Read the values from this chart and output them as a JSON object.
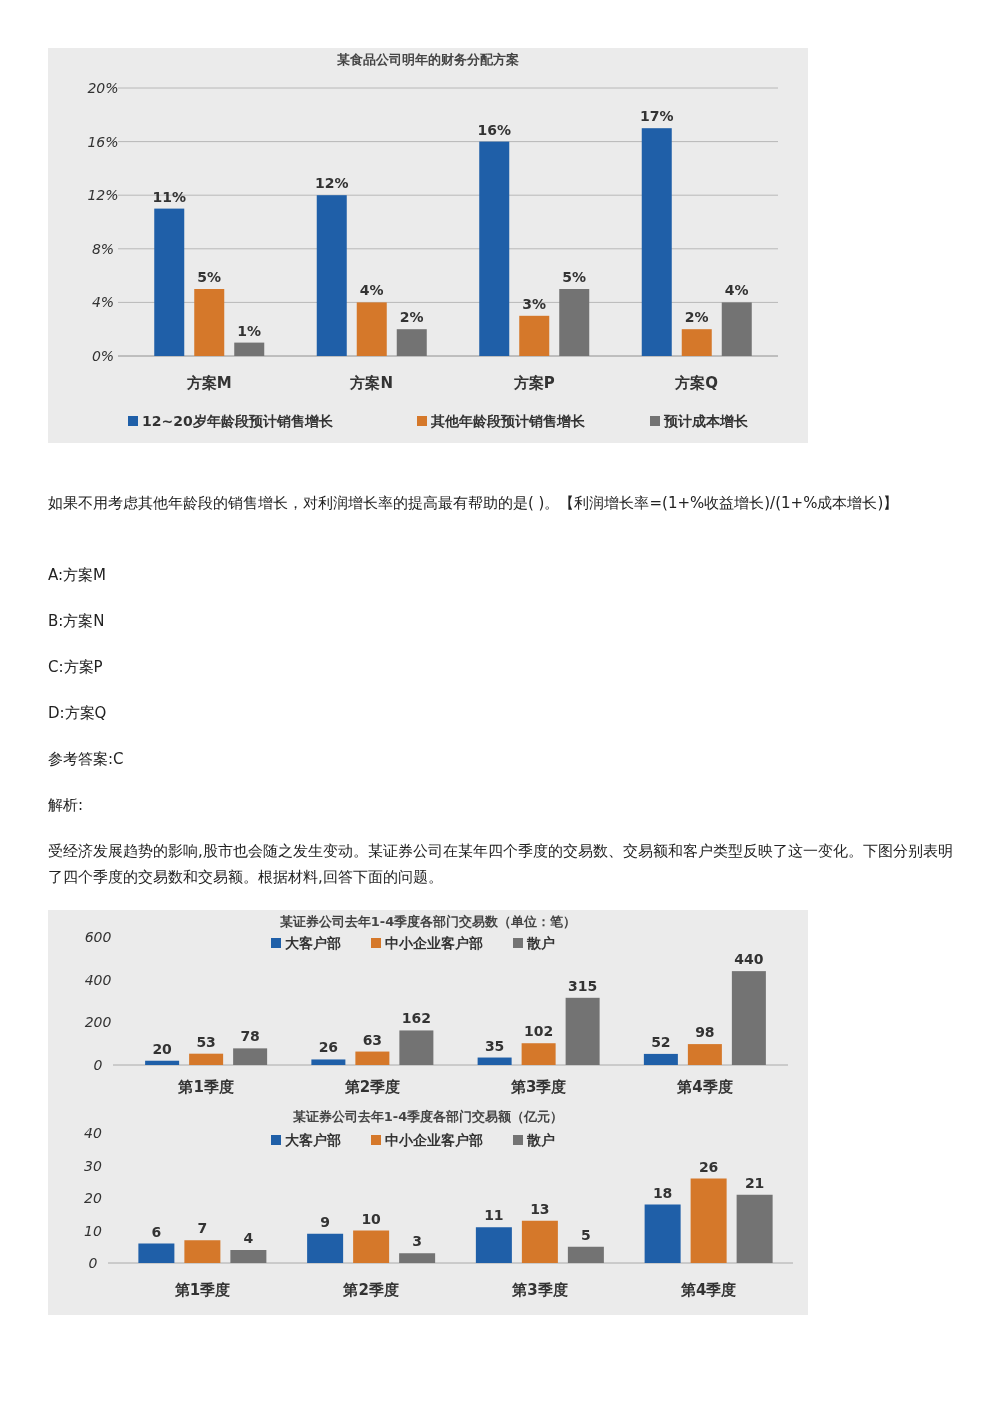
{
  "chart_data": [
    {
      "type": "bar",
      "title": "某食品公司明年的财务分配方案",
      "categories": [
        "方案M",
        "方案N",
        "方案P",
        "方案Q"
      ],
      "series": [
        {
          "name": "12~20岁年龄段预计销售增长",
          "color": "#1f5fa8",
          "values": [
            11,
            12,
            16,
            17
          ],
          "value_labels": [
            "11%",
            "12%",
            "16%",
            "17%"
          ]
        },
        {
          "name": "其他年龄段预计销售增长",
          "color": "#d5782a",
          "values": [
            5,
            4,
            3,
            2
          ],
          "value_labels": [
            "5%",
            "4%",
            "3%",
            "2%"
          ]
        },
        {
          "name": "预计成本增长",
          "color": "#737373",
          "values": [
            1,
            2,
            5,
            4
          ],
          "value_labels": [
            "1%",
            "2%",
            "5%",
            "4%"
          ]
        }
      ],
      "ylim": [
        0,
        20
      ],
      "yticks": [
        {
          "value": 0,
          "label": "0%"
        },
        {
          "value": 4,
          "label": "4%"
        },
        {
          "value": 8,
          "label": "8%"
        },
        {
          "value": 12,
          "label": "12%"
        },
        {
          "value": 16,
          "label": "16%"
        },
        {
          "value": 20,
          "label": "20%"
        }
      ],
      "grid": "y",
      "legend": "bottom",
      "annotations": [
        "如果不用考虑其他年龄段的销售增长，对利润增长率的提高最有帮助的是( )。【利润增长率=(1+%收益增长)/(1+%成本增长)】",
        "A:方案M",
        "B:方案N",
        "C:方案P",
        "D:方案Q",
        "参考答案:C",
        "解析:",
        "受经济发展趋势的影响,股市也会随之发生变动。某证券公司在某年四个季度的交易数、交易额和客户类型反映了这一变化。下图分别表明了四个季度的交易数和交易额。根据材料,回答下面的问题。"
      ]
    },
    {
      "type": "bar",
      "title": "某证券公司去年1-4季度各部门交易数（单位：笔）",
      "categories": [
        "第1季度",
        "第2季度",
        "第3季度",
        "第4季度"
      ],
      "series": [
        {
          "name": "大客户部",
          "color": "#1f5fa8",
          "values": [
            20,
            26,
            35,
            52
          ]
        },
        {
          "name": "中小企业客户部",
          "color": "#d5782a",
          "values": [
            53,
            63,
            102,
            98
          ]
        },
        {
          "name": "散户",
          "color": "#737373",
          "values": [
            78,
            162,
            315,
            440
          ]
        }
      ],
      "ylim": [
        0,
        600
      ],
      "yticks": [
        0,
        200,
        400,
        600
      ],
      "data_labels": true,
      "legend": "top"
    },
    {
      "type": "bar",
      "title": "某证券公司去年1-4季度各部门交易额（亿元）",
      "categories": [
        "第1季度",
        "第2季度",
        "第3季度",
        "第4季度"
      ],
      "series": [
        {
          "name": "大客户部",
          "color": "#1f5fa8",
          "values": [
            6,
            9,
            11,
            18
          ]
        },
        {
          "name": "中小企业客户部",
          "color": "#d5782a",
          "values": [
            7,
            10,
            13,
            26
          ]
        },
        {
          "name": "散户",
          "color": "#737373",
          "values": [
            4,
            3,
            5,
            21
          ]
        }
      ],
      "ylim": [
        0,
        40
      ],
      "yticks": [
        0,
        10,
        20,
        30,
        40
      ],
      "data_labels": true,
      "legend": "top"
    }
  ]
}
